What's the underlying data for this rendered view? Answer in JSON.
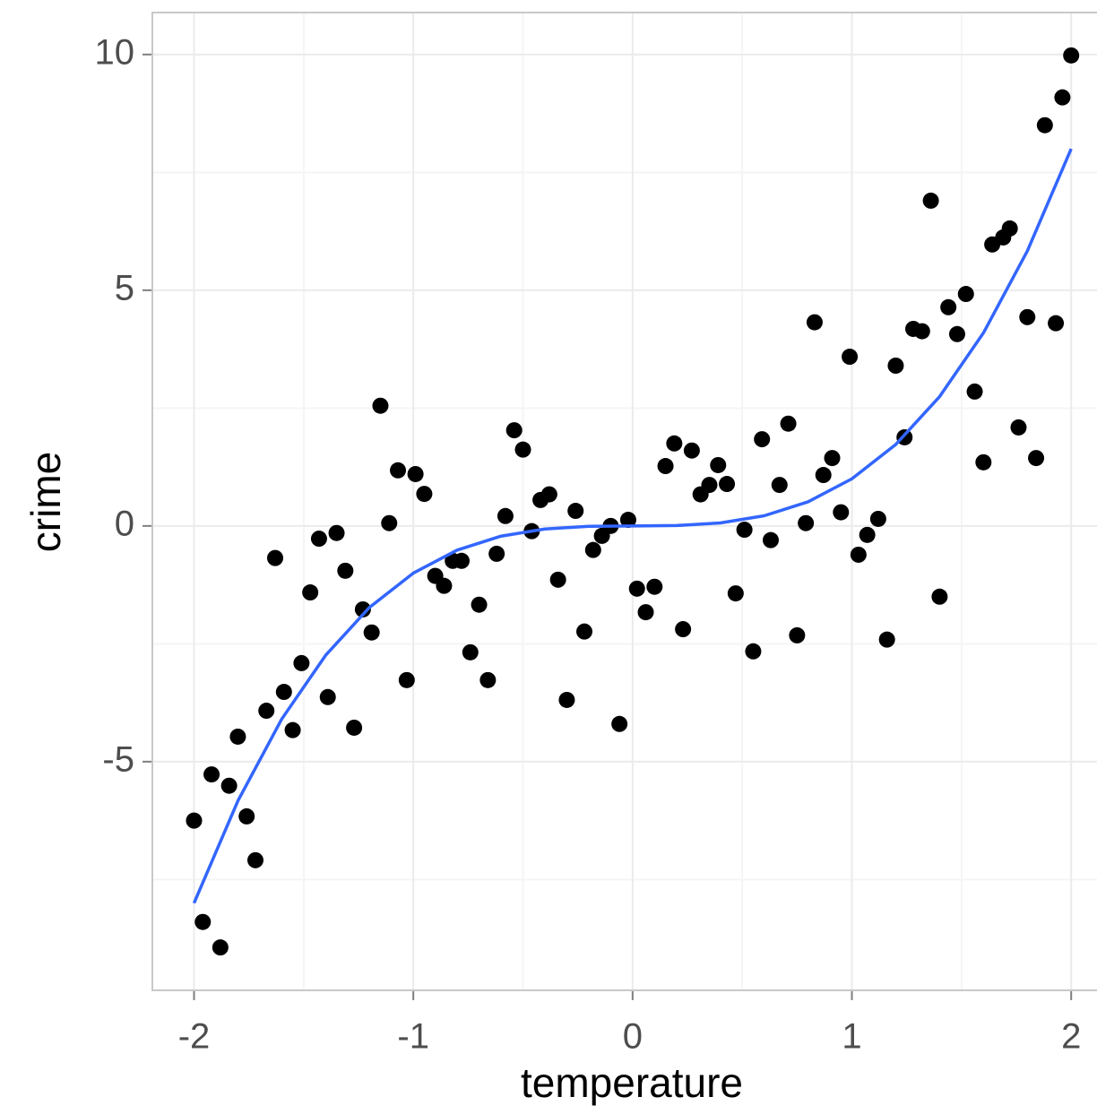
{
  "chart_data": {
    "type": "scatter",
    "x_label": "temperature",
    "y_label": "crime",
    "xlim": [
      -2.19,
      2.13
    ],
    "ylim": [
      -9.85,
      10.89
    ],
    "xticks": [
      -2,
      -1,
      0,
      1,
      2
    ],
    "yticks": [
      -5,
      0,
      5,
      10
    ],
    "grid": true,
    "series": [
      {
        "type": "scatter",
        "color": "#000000",
        "x": [
          -2.0,
          -1.96,
          -1.92,
          -1.88,
          -1.84,
          -1.8,
          -1.76,
          -1.72,
          -1.67,
          -1.63,
          -1.59,
          -1.55,
          -1.51,
          -1.47,
          -1.43,
          -1.39,
          -1.35,
          -1.31,
          -1.27,
          -1.23,
          -1.19,
          -1.15,
          -1.11,
          -1.07,
          -1.03,
          -0.99,
          -0.95,
          -0.9,
          -0.86,
          -0.82,
          -0.78,
          -0.74,
          -0.7,
          -0.66,
          -0.62,
          -0.58,
          -0.54,
          -0.5,
          -0.46,
          -0.42,
          -0.38,
          -0.34,
          -0.3,
          -0.26,
          -0.22,
          -0.18,
          -0.14,
          -0.1,
          -0.06,
          -0.02,
          0.02,
          0.06,
          0.1,
          0.15,
          0.19,
          0.23,
          0.27,
          0.31,
          0.35,
          0.39,
          0.43,
          0.47,
          0.51,
          0.55,
          0.59,
          0.63,
          0.67,
          0.71,
          0.75,
          0.79,
          0.83,
          0.87,
          0.91,
          0.95,
          0.99,
          1.03,
          1.07,
          1.12,
          1.16,
          1.2,
          1.24,
          1.28,
          1.32,
          1.36,
          1.4,
          1.44,
          1.48,
          1.52,
          1.56,
          1.6,
          1.64,
          1.69,
          1.72,
          1.76,
          1.8,
          1.84,
          1.88,
          1.93,
          1.96,
          2.0
        ],
        "values": [
          -6.25,
          -8.4,
          -5.27,
          -8.94,
          -5.51,
          -4.47,
          -6.16,
          -7.09,
          -3.92,
          -0.68,
          -3.52,
          -4.33,
          -2.91,
          -1.41,
          -0.27,
          -3.63,
          -0.15,
          -0.95,
          -4.28,
          -1.77,
          -2.26,
          2.55,
          0.06,
          1.18,
          -3.27,
          1.1,
          0.68,
          -1.06,
          -1.27,
          -0.74,
          -0.74,
          -2.68,
          -1.67,
          -3.27,
          -0.59,
          0.21,
          2.03,
          1.62,
          -0.11,
          0.55,
          0.67,
          -1.14,
          -3.69,
          0.32,
          -2.24,
          -0.51,
          -0.21,
          0,
          -4.2,
          0.13,
          -1.33,
          -1.83,
          -1.29,
          1.27,
          1.75,
          -2.19,
          1.6,
          0.67,
          0.87,
          1.29,
          0.89,
          -1.43,
          -0.08,
          -2.66,
          1.84,
          -0.3,
          0.87,
          2.17,
          -2.32,
          0.06,
          4.32,
          1.08,
          1.44,
          0.29,
          3.59,
          -0.61,
          -0.19,
          0.15,
          -2.41,
          3.4,
          1.88,
          4.18,
          4.13,
          6.9,
          -1.5,
          4.64,
          4.07,
          4.92,
          2.85,
          1.35,
          5.97,
          6.12,
          6.31,
          2.09,
          4.43,
          1.44,
          8.5,
          4.3,
          9.09,
          9.98
        ]
      },
      {
        "type": "line",
        "color": "#3366ff",
        "x": [
          -2,
          -1.8,
          -1.6,
          -1.4,
          -1.2,
          -1,
          -0.8,
          -0.6,
          -0.4,
          -0.2,
          0,
          0.2,
          0.4,
          0.6,
          0.8,
          1,
          1.2,
          1.4,
          1.6,
          1.8,
          2
        ],
        "values": [
          -8,
          -5.832,
          -4.096,
          -2.744,
          -1.728,
          -1,
          -0.512,
          -0.216,
          -0.064,
          -0.008,
          0,
          0.008,
          0.064,
          0.216,
          0.512,
          1,
          1.728,
          2.744,
          4.096,
          5.832,
          8
        ]
      }
    ]
  }
}
